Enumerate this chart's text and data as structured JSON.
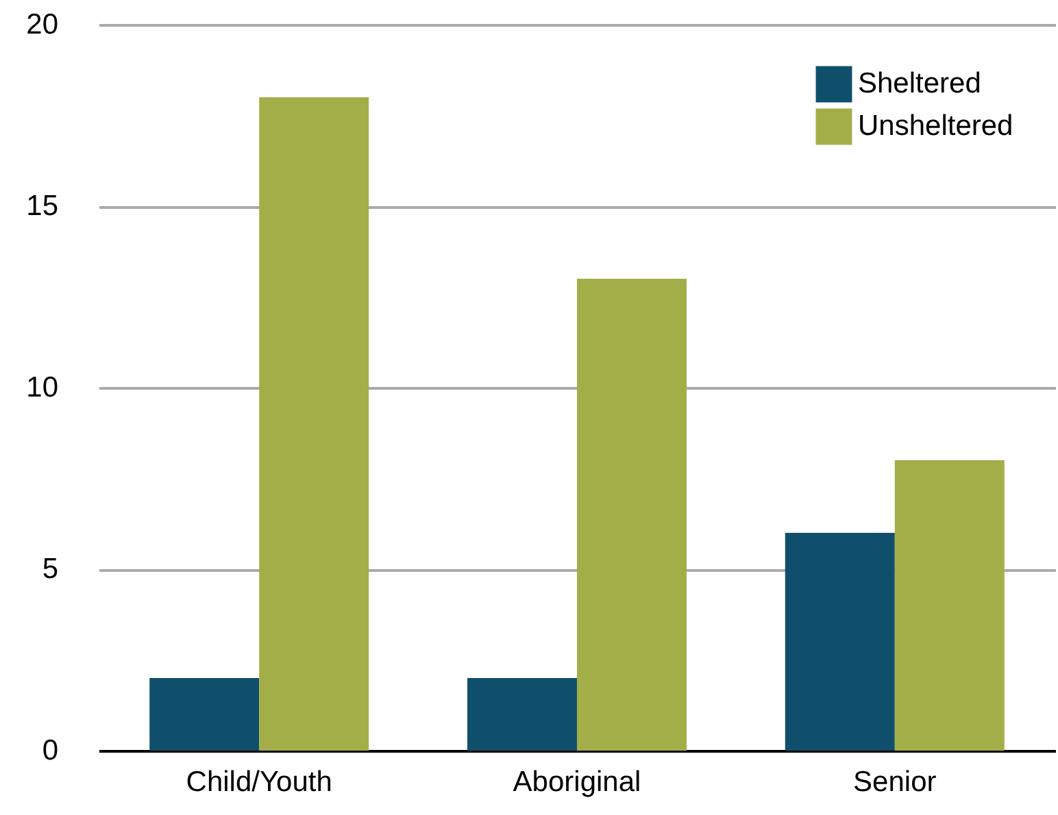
{
  "chart_data": {
    "type": "bar",
    "categories": [
      "Child/Youth",
      "Aboriginal",
      "Senior"
    ],
    "series": [
      {
        "name": "Sheltered",
        "color": "#104f6c",
        "values": [
          2,
          2,
          6
        ]
      },
      {
        "name": "Unsheltered",
        "color": "#a3ae48",
        "values": [
          18,
          13,
          8
        ]
      }
    ],
    "ylim": [
      0,
      20
    ],
    "yticks": [
      0,
      5,
      10,
      15,
      20
    ],
    "grid": "y",
    "legend": "top right"
  }
}
